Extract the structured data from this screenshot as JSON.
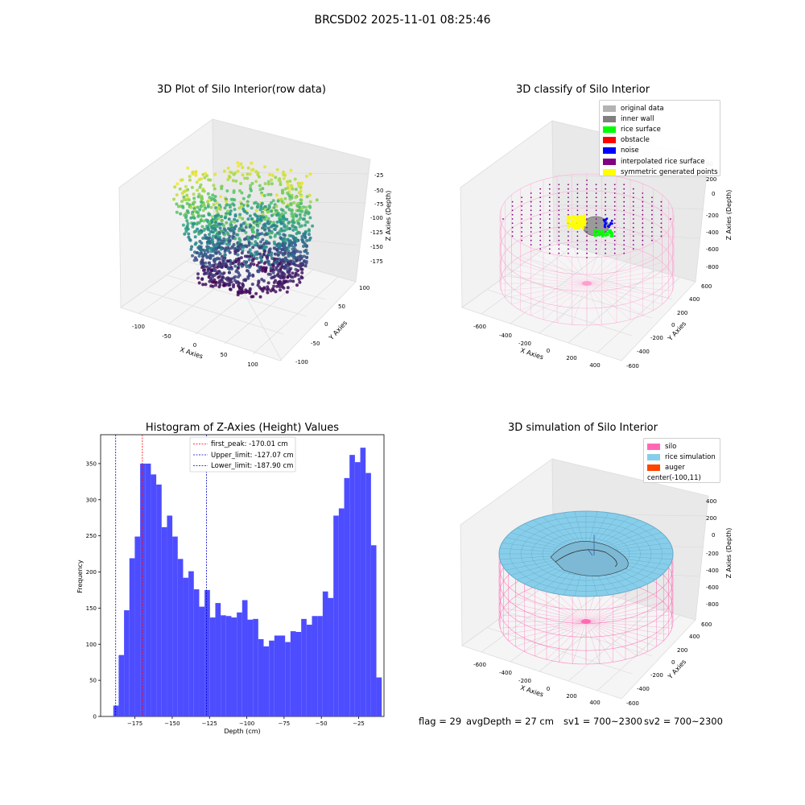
{
  "suptitle": "BRCSD02 2025-11-01 08:25:46",
  "chart_data": [
    {
      "type": "scatter",
      "title": "3D Plot of Silo Interior(row data)",
      "xlabel": "X Axies",
      "ylabel": "Y Axies",
      "zlabel": "Z Axies (Depth)",
      "xticks": [
        "-100",
        "-50",
        "0",
        "50",
        "100"
      ],
      "yticks": [
        "-100",
        "-50",
        "0",
        "50",
        "100"
      ],
      "zticks": [
        "-25",
        "-50",
        "-75",
        "-100",
        "-125",
        "-150",
        "-175"
      ],
      "xlim": [
        -125,
        125
      ],
      "ylim": [
        -125,
        125
      ],
      "zlim": [
        -190,
        -10
      ],
      "colormap": "viridis",
      "description_values": {
        "top_ring_depth": -25,
        "bottom_depth": -185
      }
    },
    {
      "type": "scatter",
      "title": "3D classify of Silo Interior",
      "xlabel": "X Axies",
      "ylabel": "Y Axies",
      "zlabel": "Z Axies (Depth)",
      "xticks": [
        "-600",
        "-400",
        "-200",
        "0",
        "200",
        "400"
      ],
      "yticks": [
        "-600",
        "-400",
        "-200",
        "0",
        "200",
        "400",
        "600"
      ],
      "zticks": [
        "200",
        "0",
        "-200",
        "-400",
        "-600",
        "-800"
      ],
      "zticks_partial": [
        "00"
      ],
      "legend": [
        {
          "label": "original data",
          "color": "#b3b3b3"
        },
        {
          "label": "inner wall",
          "color": "#808080"
        },
        {
          "label": "rice surface",
          "color": "#00ff00"
        },
        {
          "label": "obstacle",
          "color": "#ff0000"
        },
        {
          "label": "noise",
          "color": "#0000ff"
        },
        {
          "label": "interpolated rice surface",
          "color": "#800080"
        },
        {
          "label": "symmetric generated points",
          "color": "#ffff00"
        }
      ],
      "silo_color": "#ff69b4"
    },
    {
      "type": "bar",
      "title": "Histogram of Z-Axies (Height) Values",
      "xlabel": "Depth (cm)",
      "ylabel": "Frequency",
      "bin_start": -189.5,
      "bin_width": 3.6,
      "values": [
        15,
        85,
        147,
        219,
        249,
        350,
        350,
        335,
        321,
        262,
        278,
        249,
        218,
        192,
        201,
        176,
        152,
        175,
        137,
        157,
        140,
        139,
        137,
        144,
        161,
        134,
        135,
        107,
        97,
        105,
        112,
        112,
        103,
        118,
        117,
        135,
        127,
        139,
        139,
        173,
        164,
        278,
        288,
        330,
        362,
        352,
        372,
        337,
        237,
        54
      ],
      "xlim": [
        -198,
        -8
      ],
      "ylim": [
        0,
        390
      ],
      "xticks": [
        -175,
        -150,
        -125,
        -100,
        -75,
        -50,
        -25
      ],
      "yticks": [
        0,
        50,
        100,
        150,
        200,
        250,
        300,
        350
      ],
      "xtick_labels": [
        "−175",
        "−150",
        "−125",
        "−100",
        "−75",
        "−50",
        "−25"
      ],
      "ytick_labels": [
        "0",
        "50",
        "100",
        "150",
        "200",
        "250",
        "300",
        "350"
      ],
      "bar_color": "#4d4dff",
      "vlines": [
        {
          "label": "first_peak: -170.01 cm",
          "x": -170.01,
          "color": "#ff0000"
        },
        {
          "label": "Upper_limit: -127.07 cm",
          "x": -127.07,
          "color": "#0000cc"
        },
        {
          "label": "Lower_limit: -187.90 cm",
          "x": -187.9,
          "color": "#0000cc"
        }
      ]
    },
    {
      "type": "other",
      "title": "3D simulation of Silo Interior",
      "xlabel": "X Axies",
      "ylabel": "Y Axies",
      "zlabel": "Z Axies (Depth)",
      "xticks": [
        "-600",
        "-400",
        "-200",
        "0",
        "200",
        "400"
      ],
      "yticks": [
        "-600",
        "-400",
        "-200",
        "0",
        "200",
        "400",
        "600"
      ],
      "zticks": [
        "400",
        "200",
        "0",
        "-200",
        "-400",
        "-600",
        "-800"
      ],
      "legend": [
        {
          "label": "silo",
          "color": "#ff69b4"
        },
        {
          "label": "rice simulation",
          "color": "#87ceeb"
        },
        {
          "label": "auger",
          "color": "#ff4500"
        },
        {
          "label": "center(-100,11)",
          "color": ""
        }
      ]
    }
  ],
  "status": {
    "flag": "flag = 29",
    "avg_depth": "avgDepth = 27 cm",
    "sv1": "sv1 = 700~2300",
    "sv2": "sv2 = 700~2300"
  }
}
